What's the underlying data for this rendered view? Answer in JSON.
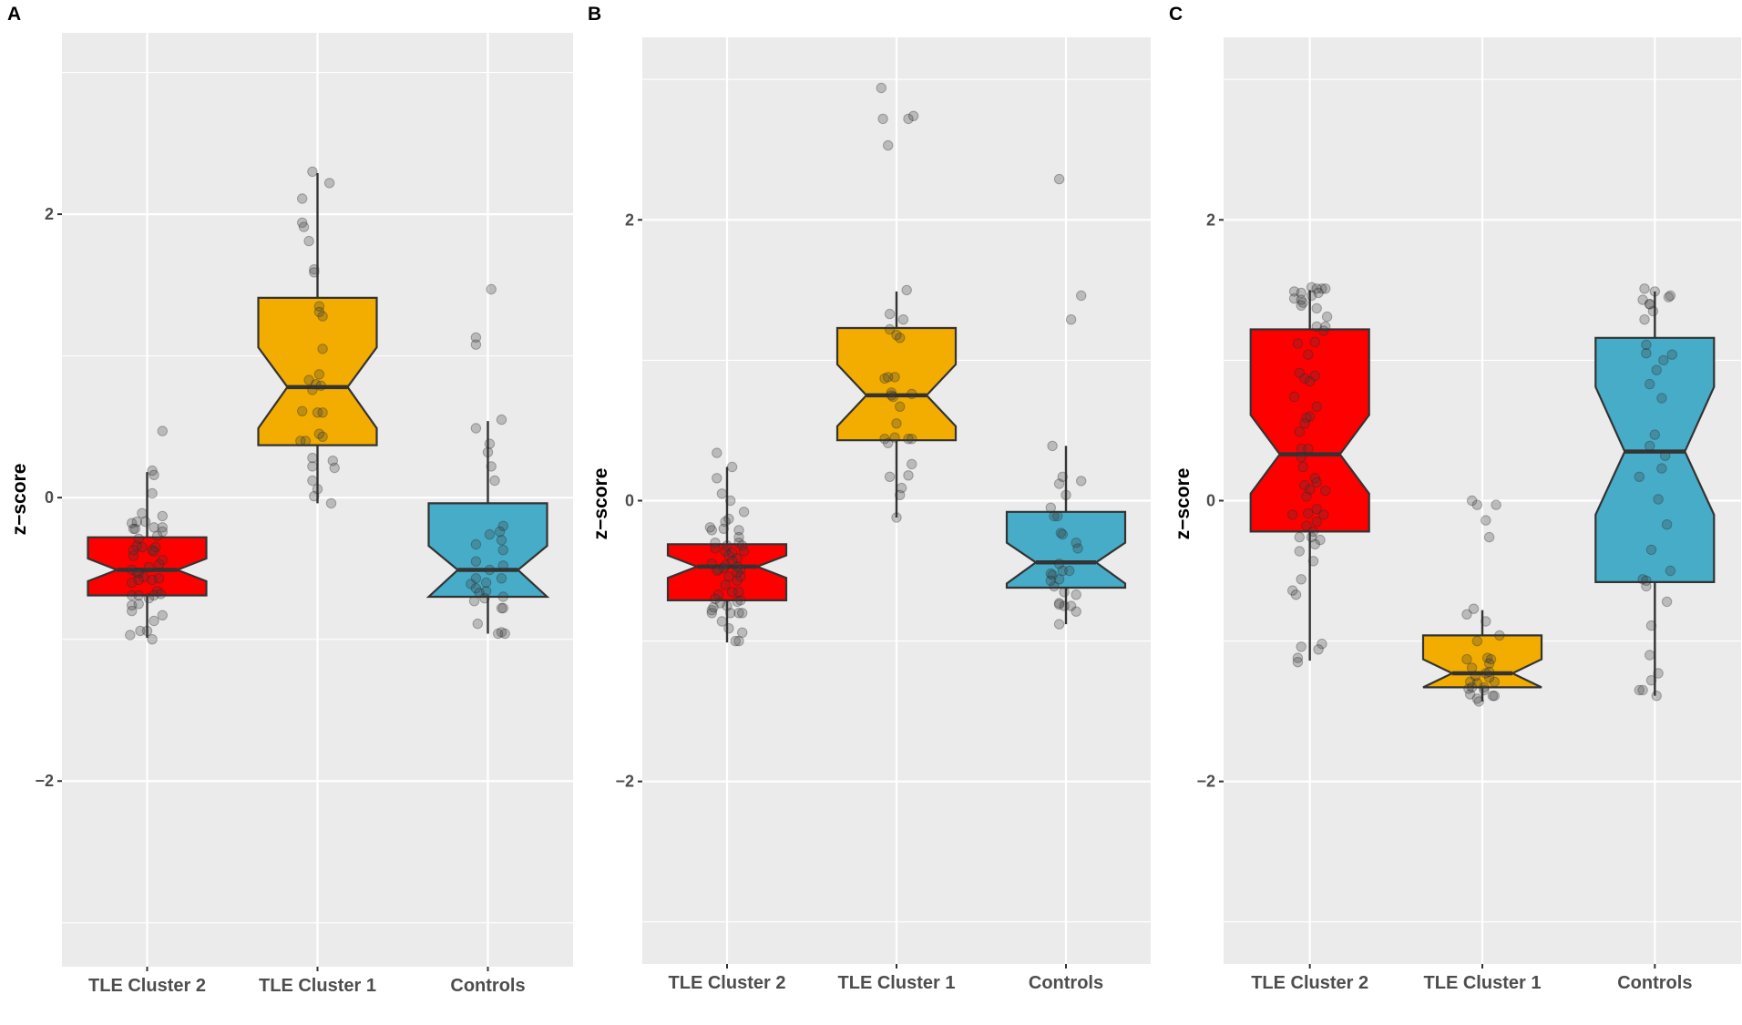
{
  "chart_data": [
    {
      "type": "boxplot",
      "panel_label": "A",
      "title": "",
      "xlabel": "",
      "ylabel": "z−score",
      "ylim": [
        -3.31,
        3.28
      ],
      "yticks": [
        -2,
        0,
        2
      ],
      "ytick_labels": [
        "−2",
        "0",
        "2"
      ],
      "minor_yticks": [
        -3,
        -1,
        1,
        3
      ],
      "grid": true,
      "legend": "none",
      "categories": [
        "TLE Cluster 2",
        "TLE Cluster 1",
        "Controls"
      ],
      "colors": [
        "#FF0000",
        "#F2AD00",
        "#46ACC8"
      ],
      "boxes": [
        {
          "category": "TLE Cluster 2",
          "q1": -0.69,
          "median": -0.51,
          "q3": -0.28,
          "notch_low": -0.59,
          "notch_high": -0.43,
          "whisker_low": -0.99,
          "whisker_high": 0.18
        },
        {
          "category": "TLE Cluster 1",
          "q1": 0.37,
          "median": 0.78,
          "q3": 1.41,
          "notch_low": 0.49,
          "notch_high": 1.06,
          "whisker_low": -0.04,
          "whisker_high": 2.29
        },
        {
          "category": "Controls",
          "q1": -0.7,
          "median": -0.51,
          "q3": -0.04,
          "notch_low": -0.7,
          "notch_high": -0.34,
          "whisker_low": -0.96,
          "whisker_high": 0.54
        }
      ],
      "points": [
        {
          "category": "TLE Cluster 2",
          "values": [
            0.47,
            0.19,
            0.16,
            0.03,
            -0.11,
            -0.13,
            -0.18,
            -0.17,
            -0.17,
            -0.21,
            -0.22,
            -0.22,
            -0.21,
            -0.24,
            -0.27,
            -0.29,
            -0.34,
            -0.35,
            -0.35,
            -0.37,
            -0.38,
            -0.37,
            -0.41,
            -0.47,
            -0.44,
            -0.49,
            -0.51,
            -0.53,
            -0.53,
            -0.56,
            -0.6,
            -0.58,
            -0.58,
            -0.57,
            -0.66,
            -0.71,
            -0.69,
            -0.68,
            -0.69,
            -0.69,
            -0.76,
            -0.75,
            -0.8,
            -0.83,
            -0.87,
            -0.97,
            -0.94,
            -0.94,
            -1.0
          ],
          "jitter": [
            0.09,
            0.03,
            0.04,
            0.03,
            -0.03,
            0.09,
            -0.09,
            -0.06,
            -0.01,
            0.04,
            -0.08,
            -0.07,
            0.09,
            0.09,
            0.06,
            -0.05,
            -0.06,
            -0.03,
            0.05,
            0.03,
            0.04,
            -0.08,
            -0.08,
            0.07,
            0.09,
            0.01,
            -0.09,
            -0.06,
            -0.05,
            -0.02,
            -0.09,
            -0.05,
            0.03,
            0.07,
            0.06,
            0.01,
            0.04,
            0.08,
            -0.09,
            -0.05,
            -0.09,
            -0.05,
            -0.09,
            0.09,
            0.04,
            -0.1,
            -0.04,
            0.0,
            0.03
          ]
        },
        {
          "category": "TLE Cluster 1",
          "values": [
            2.3,
            2.22,
            2.11,
            1.94,
            1.91,
            1.81,
            1.61,
            1.59,
            1.35,
            1.31,
            1.28,
            1.05,
            0.87,
            0.83,
            0.8,
            0.79,
            0.76,
            0.61,
            0.6,
            0.6,
            0.45,
            0.43,
            0.4,
            0.4,
            0.28,
            0.22,
            0.26,
            0.21,
            0.12,
            0.06,
            0.01,
            -0.04
          ],
          "jitter": [
            -0.03,
            0.07,
            -0.09,
            -0.09,
            -0.08,
            -0.05,
            -0.02,
            -0.02,
            0.01,
            0.01,
            0.03,
            0.03,
            0.01,
            -0.05,
            -0.01,
            0.02,
            -0.03,
            -0.09,
            0.0,
            0.03,
            0.01,
            0.03,
            -0.1,
            -0.07,
            -0.03,
            -0.03,
            0.09,
            0.1,
            -0.03,
            0.0,
            -0.02,
            0.08
          ]
        },
        {
          "category": "Controls",
          "values": [
            1.47,
            1.13,
            1.08,
            0.55,
            0.49,
            0.38,
            0.32,
            0.22,
            0.12,
            -0.2,
            -0.24,
            -0.26,
            -0.3,
            -0.33,
            -0.37,
            -0.45,
            -0.48,
            -0.51,
            -0.57,
            -0.57,
            -0.61,
            -0.6,
            -0.64,
            -0.67,
            -0.66,
            -0.73,
            -0.71,
            -0.7,
            -0.78,
            -0.78,
            -0.89,
            -0.96,
            -0.95,
            -0.96
          ],
          "jitter": [
            0.02,
            -0.07,
            -0.07,
            0.08,
            -0.07,
            0.01,
            0.0,
            0.02,
            0.04,
            0.09,
            0.07,
            0.01,
            0.08,
            -0.07,
            0.09,
            -0.07,
            0.09,
            0.01,
            -0.07,
            0.08,
            -0.1,
            -0.01,
            -0.07,
            -0.05,
            -0.01,
            -0.08,
            -0.02,
            0.09,
            0.08,
            0.09,
            -0.06,
            0.06,
            0.08,
            0.1
          ]
        }
      ]
    },
    {
      "type": "boxplot",
      "panel_label": "B",
      "title": "",
      "xlabel": "",
      "ylabel": "z−score",
      "ylim": [
        -3.3,
        3.3
      ],
      "yticks": [
        -2,
        0,
        2
      ],
      "ytick_labels": [
        "−2",
        "0",
        "2"
      ],
      "minor_yticks": [
        -3,
        -1,
        1,
        3
      ],
      "grid": true,
      "legend": "none",
      "categories": [
        "TLE Cluster 2",
        "TLE Cluster 1",
        "Controls"
      ],
      "colors": [
        "#FF0000",
        "#F2AD00",
        "#46ACC8"
      ],
      "boxes": [
        {
          "category": "TLE Cluster 2",
          "q1": -0.71,
          "median": -0.47,
          "q3": -0.31,
          "notch_low": -0.55,
          "notch_high": -0.39,
          "whisker_low": -1.01,
          "whisker_high": 0.24
        },
        {
          "category": "TLE Cluster 1",
          "q1": 0.43,
          "median": 0.75,
          "q3": 1.23,
          "notch_low": 0.53,
          "notch_high": 0.97,
          "whisker_low": -0.12,
          "whisker_high": 1.49
        },
        {
          "category": "Controls",
          "q1": -0.62,
          "median": -0.44,
          "q3": -0.08,
          "notch_low": -0.59,
          "notch_high": -0.3,
          "whisker_low": -0.88,
          "whisker_high": 0.39
        }
      ],
      "points": [
        {
          "category": "TLE Cluster 2",
          "values": [
            0.34,
            0.24,
            0.16,
            0.05,
            0.0,
            -0.08,
            -0.13,
            -0.15,
            -0.19,
            -0.21,
            -0.2,
            -0.21,
            -0.26,
            -0.3,
            -0.3,
            -0.32,
            -0.34,
            -0.32,
            -0.36,
            -0.37,
            -0.36,
            -0.39,
            -0.41,
            -0.43,
            -0.45,
            -0.46,
            -0.47,
            -0.49,
            -0.48,
            -0.5,
            -0.49,
            -0.51,
            -0.54,
            -0.54,
            -0.57,
            -0.6,
            -0.65,
            -0.65,
            -0.67,
            -0.7,
            -0.71,
            -0.72,
            -0.73,
            -0.75,
            -0.76,
            -0.78,
            -0.8,
            -0.8,
            -0.8,
            -0.8,
            -0.86,
            -0.91,
            -0.94,
            -1.0,
            -1.0
          ],
          "jitter": [
            -0.06,
            0.03,
            -0.06,
            -0.03,
            0.02,
            0.1,
            0.01,
            -0.01,
            -0.1,
            -0.09,
            -0.02,
            0.07,
            0.07,
            0.07,
            -0.07,
            0.09,
            -0.07,
            0.0,
            -0.01,
            0.03,
            0.1,
            0.01,
            0.06,
            0.03,
            -0.09,
            -0.01,
            0.06,
            -0.05,
            -0.02,
            -0.06,
            0.08,
            0.06,
            0.01,
            0.08,
            0.06,
            -0.01,
            0.03,
            0.07,
            -0.05,
            -0.07,
            0.08,
            0.06,
            -0.04,
            0.0,
            -0.08,
            -0.09,
            -0.09,
            0.02,
            0.07,
            0.09,
            -0.03,
            0.01,
            0.09,
            0.05,
            0.07
          ]
        },
        {
          "category": "TLE Cluster 1",
          "values": [
            2.94,
            2.72,
            2.72,
            2.74,
            2.53,
            1.5,
            1.33,
            1.29,
            1.22,
            1.18,
            1.16,
            0.87,
            0.88,
            0.88,
            0.77,
            0.75,
            0.74,
            0.76,
            0.67,
            0.55,
            0.44,
            0.41,
            0.45,
            0.44,
            0.44,
            0.26,
            0.17,
            0.18,
            0.09,
            0.04,
            -0.12
          ],
          "jitter": [
            -0.09,
            -0.08,
            0.07,
            0.1,
            -0.05,
            0.06,
            -0.04,
            0.04,
            -0.04,
            0.0,
            0.02,
            -0.07,
            -0.05,
            -0.01,
            -0.03,
            -0.03,
            -0.02,
            0.09,
            0.02,
            0.0,
            -0.07,
            -0.05,
            -0.01,
            0.07,
            0.09,
            0.09,
            -0.04,
            0.07,
            0.03,
            0.02,
            0.0
          ]
        },
        {
          "category": "Controls",
          "values": [
            2.29,
            1.46,
            1.29,
            0.39,
            0.17,
            0.12,
            0.14,
            0.04,
            -0.05,
            -0.11,
            -0.11,
            -0.23,
            -0.24,
            -0.3,
            -0.34,
            -0.45,
            -0.5,
            -0.5,
            -0.52,
            -0.53,
            -0.56,
            -0.57,
            -0.61,
            -0.65,
            -0.67,
            -0.73,
            -0.74,
            -0.75,
            -0.75,
            -0.79,
            -0.88
          ],
          "jitter": [
            -0.04,
            0.09,
            0.03,
            -0.08,
            -0.02,
            -0.04,
            0.09,
            0.0,
            -0.09,
            -0.07,
            -0.05,
            -0.03,
            -0.02,
            0.06,
            0.07,
            -0.04,
            -0.02,
            0.02,
            -0.09,
            -0.08,
            -0.04,
            -0.09,
            -0.07,
            -0.01,
            0.06,
            -0.04,
            -0.04,
            -0.01,
            0.03,
            0.06,
            -0.04
          ]
        }
      ]
    },
    {
      "type": "boxplot",
      "panel_label": "C",
      "title": "",
      "xlabel": "",
      "ylabel": "z−score",
      "ylim": [
        -3.3,
        3.3
      ],
      "yticks": [
        -2,
        0,
        2
      ],
      "ytick_labels": [
        "−2",
        "0",
        "2"
      ],
      "minor_yticks": [
        -3,
        -1,
        1,
        3
      ],
      "grid": true,
      "legend": "none",
      "categories": [
        "TLE Cluster 2",
        "TLE Cluster 1",
        "Controls"
      ],
      "colors": [
        "#FF0000",
        "#F2AD00",
        "#46ACC8"
      ],
      "boxes": [
        {
          "category": "TLE Cluster 2",
          "q1": -0.22,
          "median": 0.33,
          "q3": 1.22,
          "notch_low": 0.05,
          "notch_high": 0.61,
          "whisker_low": -1.14,
          "whisker_high": 1.5
        },
        {
          "category": "TLE Cluster 1",
          "q1": -1.33,
          "median": -1.23,
          "q3": -0.96,
          "notch_low": -1.33,
          "notch_high": -1.13,
          "whisker_low": -1.43,
          "whisker_high": -0.78
        },
        {
          "category": "Controls",
          "q1": -0.58,
          "median": 0.35,
          "q3": 1.16,
          "notch_low": -0.1,
          "notch_high": 0.81,
          "whisker_low": -1.39,
          "whisker_high": 1.49
        }
      ],
      "points": [
        {
          "category": "TLE Cluster 2",
          "values": [
            1.49,
            1.48,
            1.52,
            1.51,
            1.51,
            1.51,
            1.48,
            1.46,
            1.44,
            1.43,
            1.41,
            1.39,
            1.37,
            1.31,
            1.24,
            1.24,
            1.21,
            1.12,
            1.13,
            1.04,
            0.91,
            0.89,
            0.87,
            0.85,
            0.74,
            0.67,
            0.6,
            0.59,
            0.55,
            0.49,
            0.37,
            0.37,
            0.31,
            0.24,
            0.16,
            0.11,
            0.13,
            0.08,
            0.07,
            0.03,
            -0.06,
            -0.09,
            -0.1,
            -0.1,
            -0.15,
            -0.18,
            -0.22,
            -0.26,
            -0.26,
            -0.28,
            -0.31,
            -0.36,
            -0.43,
            -0.56,
            -0.64,
            -0.67,
            -1.04,
            -1.02,
            -1.06,
            -1.12,
            -1.15
          ],
          "jitter": [
            -0.09,
            -0.05,
            0.01,
            0.04,
            0.07,
            0.09,
            0.05,
            0.01,
            -0.09,
            -0.05,
            -0.04,
            -0.05,
            0.04,
            0.1,
            0.04,
            0.09,
            0.08,
            -0.07,
            0.03,
            -0.01,
            -0.06,
            0.03,
            -0.03,
            0.0,
            -0.09,
            0.04,
            0.0,
            -0.02,
            -0.03,
            -0.06,
            -0.05,
            -0.01,
            -0.05,
            -0.04,
            0.03,
            -0.03,
            0.04,
            0.0,
            0.09,
            -0.02,
            0.04,
            -0.01,
            0.08,
            -0.1,
            0.04,
            -0.02,
            0.02,
            -0.06,
            0.01,
            0.06,
            0.03,
            -0.06,
            0.02,
            -0.05,
            -0.1,
            -0.08,
            -0.05,
            0.07,
            0.05,
            -0.07,
            -0.07
          ]
        },
        {
          "category": "TLE Cluster 1",
          "values": [
            0.0,
            -0.03,
            -0.03,
            -0.14,
            -0.26,
            -0.77,
            -0.81,
            -0.86,
            -0.96,
            -1.0,
            -1.13,
            -1.12,
            -1.13,
            -1.16,
            -1.19,
            -1.23,
            -1.22,
            -1.25,
            -1.26,
            -1.29,
            -1.29,
            -1.3,
            -1.33,
            -1.34,
            -1.33,
            -1.35,
            -1.38,
            -1.39,
            -1.39,
            -1.41,
            -1.43
          ],
          "jitter": [
            -0.06,
            -0.03,
            0.08,
            0.02,
            0.04,
            -0.05,
            -0.09,
            0.02,
            0.1,
            -0.03,
            -0.09,
            0.03,
            0.05,
            0.04,
            -0.06,
            0.02,
            0.04,
            -0.04,
            0.04,
            0.07,
            -0.07,
            -0.03,
            0.01,
            -0.08,
            -0.06,
            0.01,
            -0.07,
            0.06,
            0.07,
            -0.03,
            -0.02
          ]
        },
        {
          "category": "Controls",
          "values": [
            1.51,
            1.49,
            1.46,
            1.45,
            1.43,
            1.4,
            1.4,
            1.35,
            1.29,
            1.11,
            1.05,
            1.04,
            1.0,
            0.93,
            0.83,
            0.73,
            0.47,
            0.39,
            0.32,
            0.23,
            0.17,
            0.01,
            -0.17,
            -0.35,
            -0.5,
            -0.56,
            -0.57,
            -0.61,
            -0.72,
            -0.89,
            -1.1,
            -1.23,
            -1.28,
            -1.35,
            -1.35,
            -1.39
          ],
          "jitter": [
            -0.06,
            0.0,
            0.09,
            0.08,
            -0.07,
            -0.03,
            -0.03,
            -0.01,
            -0.06,
            -0.05,
            -0.05,
            0.1,
            0.05,
            0.01,
            -0.03,
            0.04,
            0.0,
            -0.03,
            0.06,
            0.04,
            -0.09,
            0.02,
            0.07,
            -0.02,
            0.09,
            -0.07,
            -0.05,
            -0.05,
            0.07,
            -0.02,
            -0.03,
            0.02,
            -0.02,
            -0.09,
            -0.07,
            0.01
          ]
        }
      ]
    }
  ]
}
